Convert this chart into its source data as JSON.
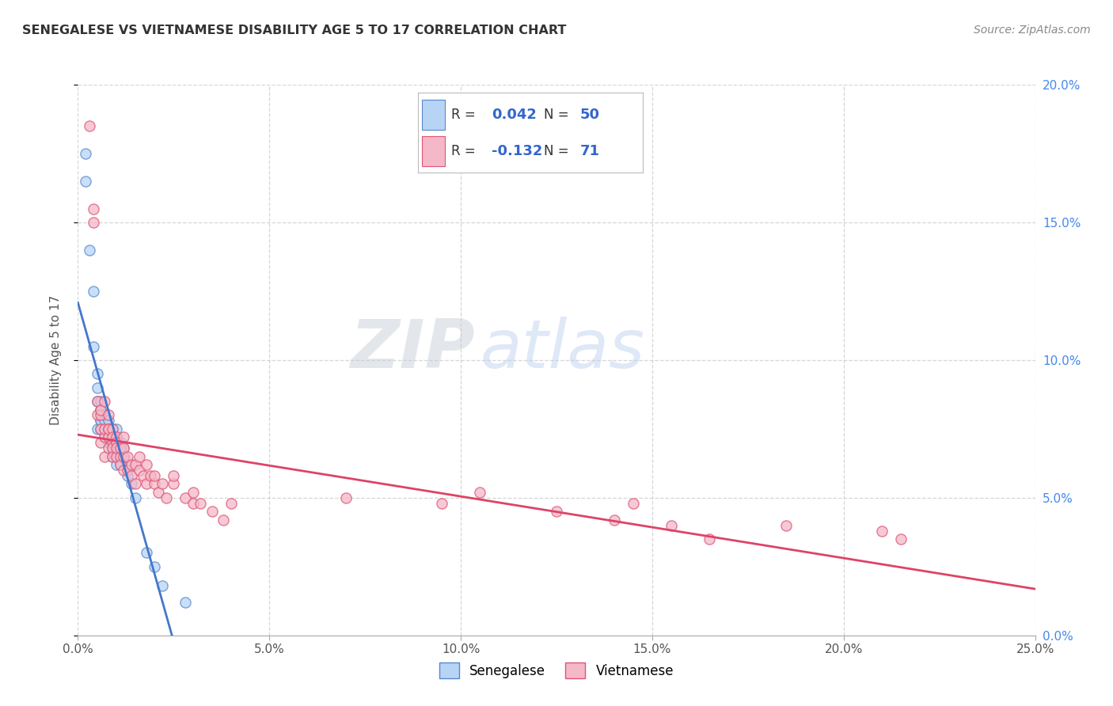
{
  "title": "SENEGALESE VS VIETNAMESE DISABILITY AGE 5 TO 17 CORRELATION CHART",
  "source": "Source: ZipAtlas.com",
  "ylabel": "Disability Age 5 to 17",
  "xlim": [
    0.0,
    0.25
  ],
  "ylim": [
    0.0,
    0.2
  ],
  "xticks": [
    0.0,
    0.05,
    0.1,
    0.15,
    0.2,
    0.25
  ],
  "yticks": [
    0.0,
    0.05,
    0.1,
    0.15,
    0.2
  ],
  "xtick_labels": [
    "0.0%",
    "5.0%",
    "10.0%",
    "15.0%",
    "20.0%",
    "25.0%"
  ],
  "ytick_labels_right": [
    "0.0%",
    "5.0%",
    "10.0%",
    "15.0%",
    "20.0%"
  ],
  "legend_r_sen": "0.042",
  "legend_n_sen": "50",
  "legend_r_vie": "-0.132",
  "legend_n_vie": "71",
  "sen_color_fill": "#b8d4f5",
  "sen_color_edge": "#5588cc",
  "vie_color_fill": "#f5b8c8",
  "vie_color_edge": "#dd5577",
  "trend_sen_color": "#4477cc",
  "trend_vie_color": "#dd4466",
  "grid_color": "#cccccc",
  "watermark_zip": "ZIP",
  "watermark_atlas": "atlas",
  "sen_x": [
    0.002,
    0.002,
    0.003,
    0.004,
    0.004,
    0.005,
    0.005,
    0.005,
    0.005,
    0.006,
    0.006,
    0.006,
    0.006,
    0.006,
    0.006,
    0.007,
    0.007,
    0.007,
    0.007,
    0.008,
    0.008,
    0.008,
    0.008,
    0.009,
    0.009,
    0.009,
    0.009,
    0.009,
    0.009,
    0.01,
    0.01,
    0.01,
    0.01,
    0.01,
    0.01,
    0.01,
    0.011,
    0.011,
    0.011,
    0.011,
    0.012,
    0.012,
    0.013,
    0.013,
    0.014,
    0.015,
    0.018,
    0.02,
    0.022,
    0.028
  ],
  "sen_y": [
    0.175,
    0.165,
    0.14,
    0.105,
    0.125,
    0.09,
    0.095,
    0.085,
    0.075,
    0.085,
    0.082,
    0.078,
    0.075,
    0.078,
    0.082,
    0.075,
    0.078,
    0.072,
    0.08,
    0.075,
    0.072,
    0.07,
    0.078,
    0.075,
    0.072,
    0.068,
    0.068,
    0.065,
    0.075,
    0.072,
    0.07,
    0.068,
    0.065,
    0.062,
    0.072,
    0.075,
    0.068,
    0.065,
    0.07,
    0.062,
    0.065,
    0.068,
    0.062,
    0.058,
    0.055,
    0.05,
    0.03,
    0.025,
    0.018,
    0.012
  ],
  "vie_x": [
    0.003,
    0.004,
    0.004,
    0.005,
    0.005,
    0.006,
    0.006,
    0.006,
    0.006,
    0.007,
    0.007,
    0.007,
    0.007,
    0.008,
    0.008,
    0.008,
    0.008,
    0.008,
    0.009,
    0.009,
    0.009,
    0.009,
    0.009,
    0.01,
    0.01,
    0.01,
    0.01,
    0.011,
    0.011,
    0.011,
    0.012,
    0.012,
    0.012,
    0.012,
    0.013,
    0.013,
    0.014,
    0.014,
    0.015,
    0.015,
    0.016,
    0.016,
    0.017,
    0.018,
    0.018,
    0.019,
    0.02,
    0.02,
    0.021,
    0.022,
    0.023,
    0.025,
    0.025,
    0.028,
    0.03,
    0.03,
    0.032,
    0.035,
    0.038,
    0.04,
    0.07,
    0.095,
    0.105,
    0.125,
    0.14,
    0.145,
    0.155,
    0.165,
    0.185,
    0.21,
    0.215
  ],
  "vie_y": [
    0.185,
    0.15,
    0.155,
    0.085,
    0.08,
    0.075,
    0.08,
    0.07,
    0.082,
    0.085,
    0.072,
    0.075,
    0.065,
    0.075,
    0.072,
    0.068,
    0.08,
    0.075,
    0.075,
    0.07,
    0.068,
    0.065,
    0.072,
    0.072,
    0.07,
    0.065,
    0.068,
    0.065,
    0.062,
    0.068,
    0.065,
    0.06,
    0.068,
    0.072,
    0.06,
    0.065,
    0.058,
    0.062,
    0.062,
    0.055,
    0.06,
    0.065,
    0.058,
    0.062,
    0.055,
    0.058,
    0.055,
    0.058,
    0.052,
    0.055,
    0.05,
    0.055,
    0.058,
    0.05,
    0.048,
    0.052,
    0.048,
    0.045,
    0.042,
    0.048,
    0.05,
    0.048,
    0.052,
    0.045,
    0.042,
    0.048,
    0.04,
    0.035,
    0.04,
    0.038,
    0.035
  ]
}
